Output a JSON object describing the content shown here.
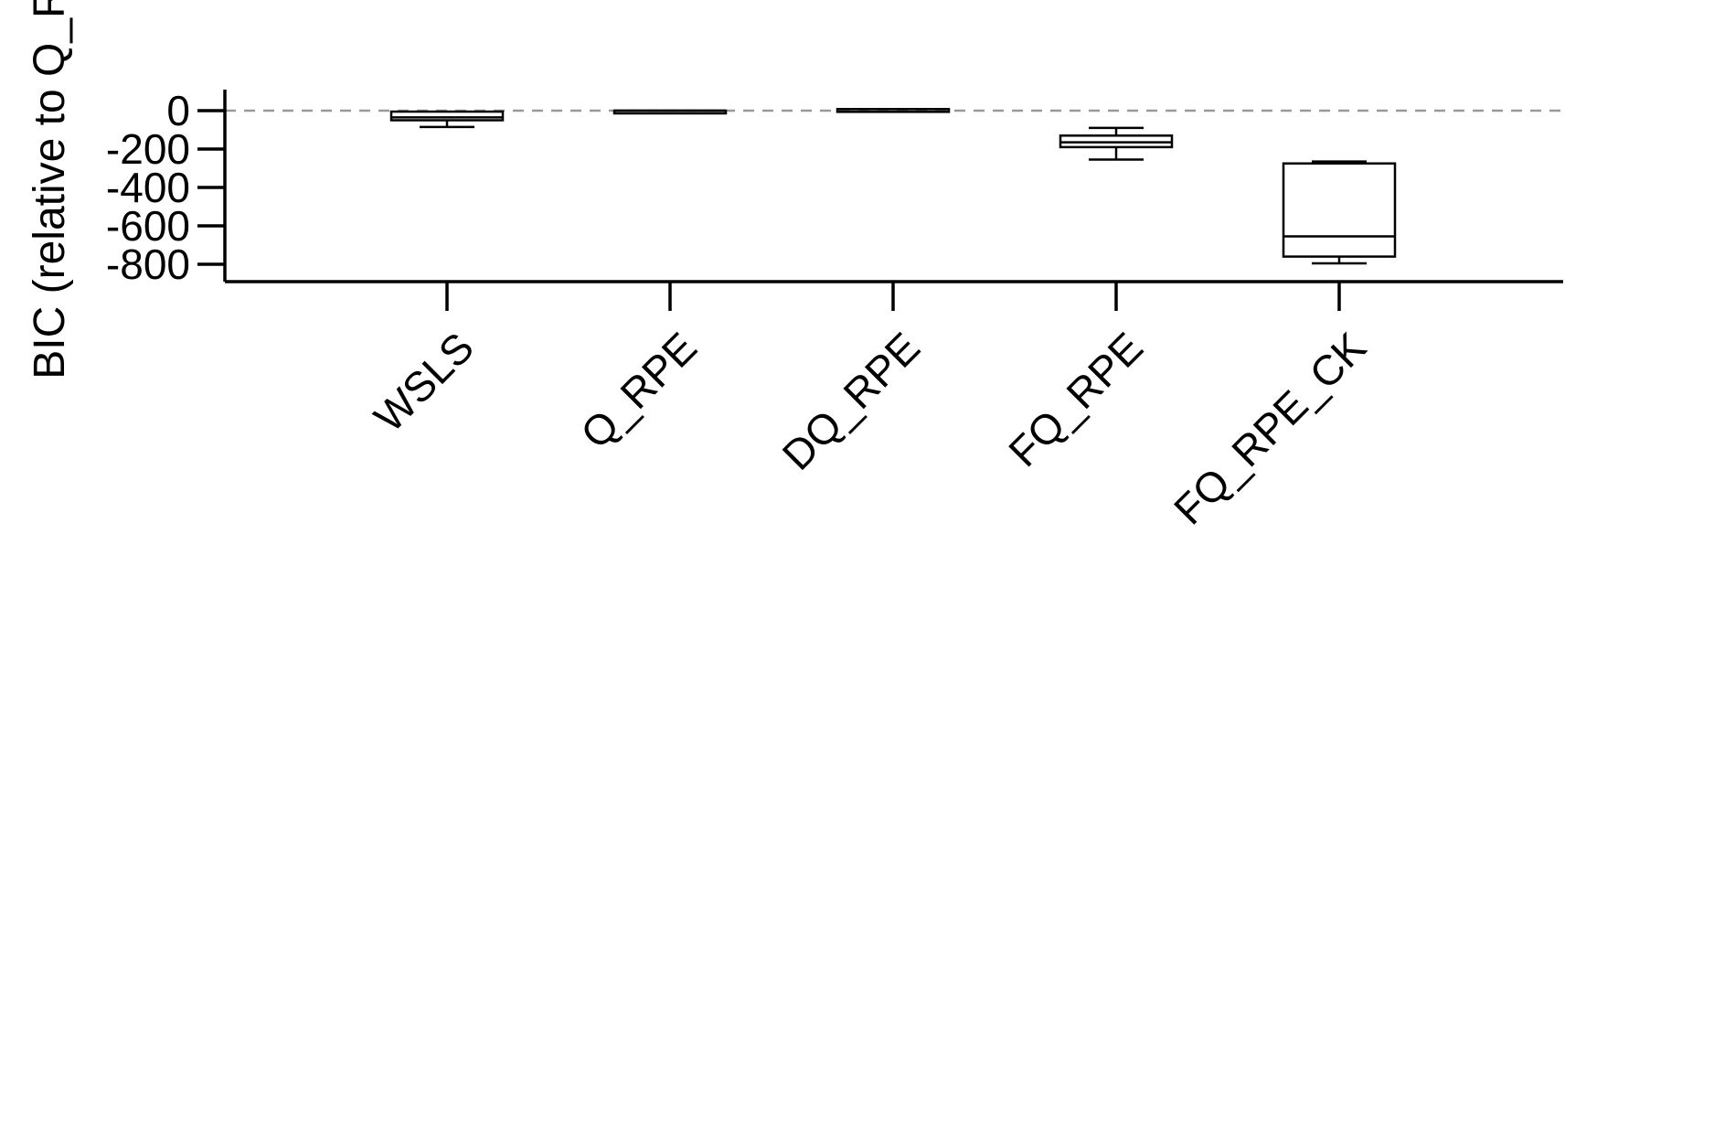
{
  "chart_data": {
    "type": "box",
    "title": "",
    "xlabel": "",
    "ylabel": "BIC (relative to Q_R",
    "categories": [
      "WSLS",
      "Q_RPE",
      "DQ_RPE",
      "FQ_RPE",
      "FQ_RPE_CK"
    ],
    "yticks": [
      0,
      -200,
      -400,
      -600,
      -800
    ],
    "ytick_labels": [
      "0",
      "-200",
      "-400",
      "-600",
      "-800"
    ],
    "ylim": [
      -890,
      110
    ],
    "reference_line": {
      "y": 0,
      "style": "dashed",
      "color": "#999999"
    },
    "boxes": [
      {
        "category": "WSLS",
        "whisker_low": -85,
        "q1": -50,
        "median": -35,
        "q3": -5,
        "whisker_high": -5
      },
      {
        "category": "Q_RPE",
        "whisker_low": 0,
        "q1": 0,
        "median": 0,
        "q3": 0,
        "whisker_high": 0
      },
      {
        "category": "DQ_RPE",
        "whisker_low": 8,
        "q1": 8,
        "median": 8,
        "q3": 8,
        "whisker_high": 8
      },
      {
        "category": "FQ_RPE",
        "whisker_low": -255,
        "q1": -190,
        "median": -165,
        "q3": -130,
        "whisker_high": -90
      },
      {
        "category": "FQ_RPE_CK",
        "whisker_low": -795,
        "q1": -760,
        "median": -655,
        "q3": -275,
        "whisker_high": -265
      }
    ],
    "grid": false,
    "legend": "none",
    "colors": {
      "axis": "#000000",
      "box": "#000000",
      "reference": "#999999"
    }
  }
}
